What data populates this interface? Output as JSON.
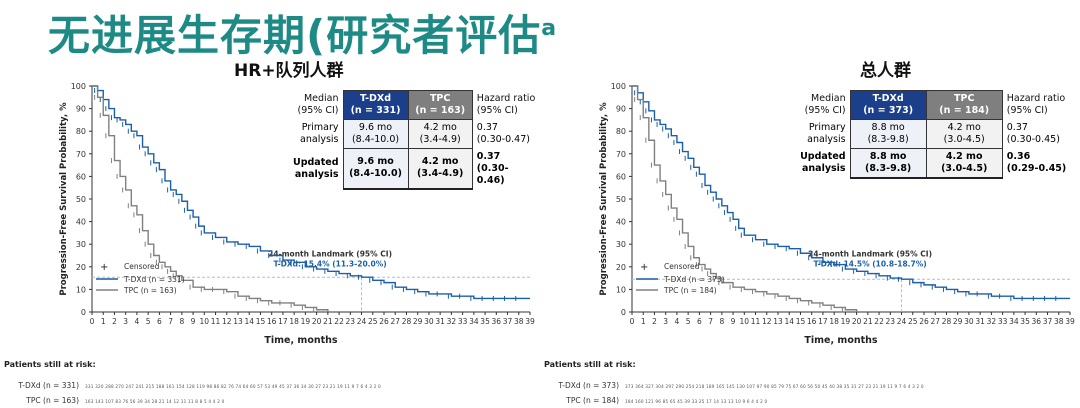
{
  "slide": {
    "title": "无进展生存期(研究者评估",
    "title_sup": "a"
  },
  "colors": {
    "title": "#1e8a86",
    "tdxd": "#1c5fa8",
    "tpc": "#808080",
    "header_tdxd": "#1b3f8a",
    "header_tpc": "#7f7f7f"
  },
  "panels": [
    {
      "title": "HR+队列人群",
      "table": {
        "header": {
          "label_line1": "Median",
          "label_line2": "(95% CI)",
          "tdxd_line1": "T-DXd",
          "tdxd_line2": "(n = 331)",
          "tpc_line1": "TPC",
          "tpc_line2": "(n = 163)",
          "hr_line1": "Hazard ratio",
          "hr_line2": "(95% CI)"
        },
        "primary": {
          "label_line1": "Primary",
          "label_line2": "analysis",
          "tdxd_line1": "9.6 mo",
          "tdxd_line2": "(8.4-10.0)",
          "tpc_line1": "4.2 mo",
          "tpc_line2": "(3.4-4.9)",
          "hr_line1": "0.37",
          "hr_line2": "(0.30-0.47)"
        },
        "updated": {
          "label_line1": "Updated",
          "label_line2": "analysis",
          "tdxd_line1": "9.6 mo",
          "tdxd_line2": "(8.4-10.0)",
          "tpc_line1": "4.2 mo",
          "tpc_line2": "(3.4-4.9)",
          "hr_line1": "0.37",
          "hr_line2": "(0.30-0.46)"
        }
      },
      "landmark": {
        "label": "24-month Landmark (95% CI)",
        "value": "T-DXd: 15.4% (11.3-20.0%)"
      },
      "legend": {
        "censored": "Censored",
        "tdxd": "T-DXd (n = 331)",
        "tpc": "TPC (n = 163)"
      },
      "risk": {
        "header": "Patients still at risk:",
        "tdxd_label": "T-DXd (n = 331)",
        "tpc_label": "TPC (n = 163)",
        "tdxd_values": "331 320 288 270 247 241 215 188 161 154 128 119 98 86 82 76 74 64 60 57 53 49 45 37 36 34 30 27 23 21 19 11 9 7 6 4 3 2 0",
        "tpc_values": "163 143 107 83 76 56 39 34 28 21 14 12 11 11 8 8 5 4 4 2 0"
      }
    },
    {
      "title": "总人群",
      "table": {
        "header": {
          "label_line1": "Median",
          "label_line2": "(95% CI)",
          "tdxd_line1": "T-DXd",
          "tdxd_line2": "(n = 373)",
          "tpc_line1": "TPC",
          "tpc_line2": "(n = 184)",
          "hr_line1": "Hazard ratio",
          "hr_line2": "(95% CI)"
        },
        "primary": {
          "label_line1": "Primary",
          "label_line2": "analysis",
          "tdxd_line1": "8.8 mo",
          "tdxd_line2": "(8.3-9.8)",
          "tpc_line1": "4.2 mo",
          "tpc_line2": "(3.0-4.5)",
          "hr_line1": "0.37",
          "hr_line2": "(0.30-0.45)"
        },
        "updated": {
          "label_line1": "Updated",
          "label_line2": "analysis",
          "tdxd_line1": "8.8 mo",
          "tdxd_line2": "(8.3-9.8)",
          "tpc_line1": "4.2 mo",
          "tpc_line2": "(3.0-4.5)",
          "hr_line1": "0.36",
          "hr_line2": "(0.29-0.45)"
        }
      },
      "landmark": {
        "label": "24-month Landmark (95% CI)",
        "value": "T-DXd: 14.5% (10.8-18.7%)"
      },
      "legend": {
        "censored": "Censored",
        "tdxd": "T-DXd (n = 373)",
        "tpc": "TPC (n = 184)"
      },
      "risk": {
        "header": "Patients still at risk:",
        "tdxd_label": "T-DXd (n = 373)",
        "tpc_label": "TPC (n = 184)",
        "tdxd_values": "373 364 327 304 297 290 254 218 189 165 145 130 107 97 90 85 79 75 67 60 56 50 45 40 38 35 31 27 23 21 19 11 9 7 6 4 3 2 0",
        "tpc_values": "184 160 121 96 85 65 45 39 33 25 17 14 13 13 10 9 6 4 4 2 0"
      }
    }
  ],
  "chart_data": [
    {
      "type": "line",
      "title": "HR+队列人群",
      "xlabel": "Time, months",
      "ylabel": "Progression-Free Survival Probability, %",
      "xlim": [
        0,
        39
      ],
      "ylim": [
        0,
        100
      ],
      "xticks": [
        0,
        1,
        2,
        3,
        4,
        5,
        6,
        7,
        8,
        9,
        10,
        11,
        12,
        13,
        14,
        15,
        16,
        17,
        18,
        19,
        20,
        21,
        22,
        23,
        24,
        25,
        26,
        27,
        28,
        29,
        30,
        31,
        32,
        33,
        34,
        35,
        36,
        37,
        38,
        39
      ],
      "yticks": [
        0,
        10,
        20,
        30,
        40,
        50,
        60,
        70,
        80,
        90,
        100
      ],
      "landmark_x": 24,
      "landmark_y": 15.4,
      "series": [
        {
          "name": "T-DXd (n = 331)",
          "x": [
            0,
            0.5,
            1,
            1.5,
            2,
            2.5,
            3,
            3.5,
            4,
            4.5,
            5,
            5.5,
            6,
            6.5,
            7,
            7.5,
            8,
            8.5,
            9,
            9.5,
            10,
            11,
            12,
            13,
            14,
            15,
            16,
            17,
            18,
            19,
            20,
            21,
            22,
            23,
            24,
            25,
            26,
            27,
            28,
            29,
            30,
            31,
            32,
            33,
            34,
            35,
            36,
            37,
            38,
            39
          ],
          "y": [
            100,
            98,
            94,
            90,
            86,
            85,
            83,
            80,
            78,
            73,
            70,
            66,
            63,
            58,
            54,
            52,
            49,
            45,
            42,
            38,
            35,
            33,
            31,
            30,
            29,
            27,
            25,
            23,
            22,
            20,
            19,
            18,
            17,
            16,
            15.4,
            14,
            13,
            11,
            10,
            9,
            8,
            8,
            7,
            7,
            6,
            6,
            6,
            6,
            6,
            6
          ]
        },
        {
          "name": "TPC (n = 163)",
          "x": [
            0,
            0.5,
            1,
            1.5,
            2,
            2.5,
            3,
            3.5,
            4,
            4.5,
            5,
            5.5,
            6,
            6.5,
            7,
            7.5,
            8,
            9,
            10,
            11,
            12,
            13,
            14,
            15,
            16,
            17,
            18,
            19,
            20,
            21
          ],
          "y": [
            100,
            95,
            87,
            78,
            67,
            60,
            54,
            47,
            43,
            36,
            30,
            25,
            22,
            20,
            18,
            16,
            14,
            11,
            10,
            10,
            9,
            7,
            6,
            5,
            4,
            4,
            3,
            2,
            1,
            0
          ]
        }
      ]
    },
    {
      "type": "line",
      "title": "总人群",
      "xlabel": "Time, months",
      "ylabel": "Progression-Free Survival Probability, %",
      "xlim": [
        0,
        39
      ],
      "ylim": [
        0,
        100
      ],
      "xticks": [
        0,
        1,
        2,
        3,
        4,
        5,
        6,
        7,
        8,
        9,
        10,
        11,
        12,
        13,
        14,
        15,
        16,
        17,
        18,
        19,
        20,
        21,
        22,
        23,
        24,
        25,
        26,
        27,
        28,
        29,
        30,
        31,
        32,
        33,
        34,
        35,
        36,
        37,
        38,
        39
      ],
      "yticks": [
        0,
        10,
        20,
        30,
        40,
        50,
        60,
        70,
        80,
        90,
        100
      ],
      "landmark_x": 24,
      "landmark_y": 14.5,
      "series": [
        {
          "name": "T-DXd (n = 373)",
          "x": [
            0,
            0.5,
            1,
            1.5,
            2,
            2.5,
            3,
            3.5,
            4,
            4.5,
            5,
            5.5,
            6,
            6.5,
            7,
            7.5,
            8,
            8.5,
            9,
            9.5,
            10,
            11,
            12,
            13,
            14,
            15,
            16,
            17,
            18,
            19,
            20,
            21,
            22,
            23,
            24,
            25,
            26,
            27,
            28,
            29,
            30,
            31,
            32,
            33,
            34,
            35,
            36,
            37,
            38,
            39
          ],
          "y": [
            100,
            97,
            93,
            89,
            85,
            83,
            81,
            78,
            75,
            71,
            68,
            64,
            61,
            56,
            53,
            50,
            47,
            44,
            41,
            37,
            34,
            32,
            30,
            29,
            28,
            26,
            24,
            22,
            21,
            19,
            18,
            17,
            16,
            15,
            14.5,
            13,
            12,
            11,
            10,
            9,
            8,
            8,
            7,
            7,
            6,
            6,
            6,
            6,
            6,
            6
          ]
        },
        {
          "name": "TPC (n = 184)",
          "x": [
            0,
            0.5,
            1,
            1.5,
            2,
            2.5,
            3,
            3.5,
            4,
            4.5,
            5,
            5.5,
            6,
            6.5,
            7,
            7.5,
            8,
            9,
            10,
            11,
            12,
            13,
            14,
            15,
            16,
            17,
            18,
            19,
            20
          ],
          "y": [
            100,
            94,
            86,
            76,
            65,
            58,
            52,
            46,
            41,
            35,
            29,
            24,
            21,
            19,
            17,
            15,
            13,
            11,
            10,
            9,
            8,
            7,
            6,
            5,
            4,
            3,
            2,
            1,
            0
          ]
        }
      ]
    }
  ]
}
